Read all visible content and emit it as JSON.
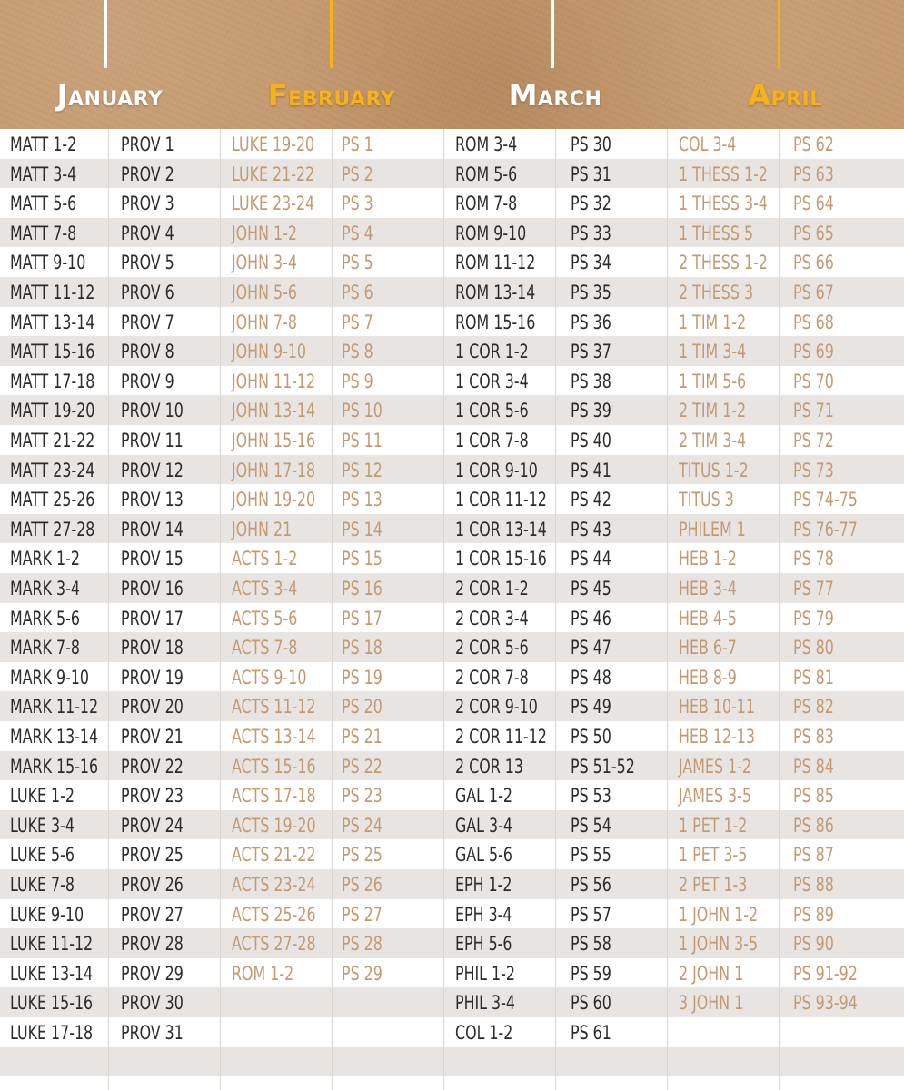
{
  "colors": {
    "jan_header": "#ffffff",
    "feb_header": "#f7b21b",
    "mar_header": "#ffffff",
    "apr_header": "#f7b21b",
    "dark_text": "#2b2b2b",
    "tan_text": "#c29a72",
    "row_shade": "#e8e4e1"
  },
  "months": [
    {
      "name": "January",
      "color": "#ffffff",
      "text_color": "#2b2b2b"
    },
    {
      "name": "February",
      "color": "#f7b21b",
      "text_color": "#c29a72"
    },
    {
      "name": "March",
      "color": "#ffffff",
      "text_color": "#2b2b2b"
    },
    {
      "name": "April",
      "color": "#f7b21b",
      "text_color": "#c29a72"
    }
  ],
  "readings": [
    [
      [
        "MATT 1-2",
        "PROV 1"
      ],
      [
        "MATT 3-4",
        "PROV 2"
      ],
      [
        "MATT 5-6",
        "PROV 3"
      ],
      [
        "MATT 7-8",
        "PROV 4"
      ],
      [
        "MATT 9-10",
        "PROV 5"
      ],
      [
        "MATT 11-12",
        "PROV 6"
      ],
      [
        "MATT 13-14",
        "PROV 7"
      ],
      [
        "MATT 15-16",
        "PROV 8"
      ],
      [
        "MATT 17-18",
        "PROV 9"
      ],
      [
        "MATT 19-20",
        "PROV 10"
      ],
      [
        "MATT 21-22",
        "PROV 11"
      ],
      [
        "MATT 23-24",
        "PROV 12"
      ],
      [
        "MATT 25-26",
        "PROV 13"
      ],
      [
        "MATT 27-28",
        "PROV 14"
      ],
      [
        "MARK 1-2",
        "PROV 15"
      ],
      [
        "MARK 3-4",
        "PROV 16"
      ],
      [
        "MARK 5-6",
        "PROV 17"
      ],
      [
        "MARK 7-8",
        "PROV 18"
      ],
      [
        "MARK 9-10",
        "PROV 19"
      ],
      [
        "MARK 11-12",
        "PROV 20"
      ],
      [
        "MARK 13-14",
        "PROV 21"
      ],
      [
        "MARK 15-16",
        "PROV 22"
      ],
      [
        "LUKE 1-2",
        "PROV 23"
      ],
      [
        "LUKE 3-4",
        "PROV 24"
      ],
      [
        "LUKE 5-6",
        "PROV 25"
      ],
      [
        "LUKE 7-8",
        "PROV 26"
      ],
      [
        "LUKE 9-10",
        "PROV 27"
      ],
      [
        "LUKE 11-12",
        "PROV 28"
      ],
      [
        "LUKE 13-14",
        "PROV 29"
      ],
      [
        "LUKE 15-16",
        "PROV 30"
      ],
      [
        "LUKE 17-18",
        "PROV 31"
      ]
    ],
    [
      [
        "LUKE 19-20",
        "PS 1"
      ],
      [
        "LUKE 21-22",
        "PS 2"
      ],
      [
        "LUKE 23-24",
        "PS 3"
      ],
      [
        "JOHN 1-2",
        "PS 4"
      ],
      [
        "JOHN 3-4",
        "PS 5"
      ],
      [
        "JOHN 5-6",
        "PS 6"
      ],
      [
        "JOHN 7-8",
        "PS 7"
      ],
      [
        "JOHN 9-10",
        "PS 8"
      ],
      [
        "JOHN 11-12",
        "PS 9"
      ],
      [
        "JOHN 13-14",
        "PS 10"
      ],
      [
        "JOHN 15-16",
        "PS 11"
      ],
      [
        "JOHN 17-18",
        "PS 12"
      ],
      [
        "JOHN 19-20",
        "PS 13"
      ],
      [
        "JOHN 21",
        "PS 14"
      ],
      [
        "ACTS 1-2",
        "PS 15"
      ],
      [
        "ACTS 3-4",
        "PS 16"
      ],
      [
        "ACTS 5-6",
        "PS 17"
      ],
      [
        "ACTS 7-8",
        "PS 18"
      ],
      [
        "ACTS 9-10",
        "PS 19"
      ],
      [
        "ACTS 11-12",
        "PS 20"
      ],
      [
        "ACTS 13-14",
        "PS 21"
      ],
      [
        "ACTS 15-16",
        "PS 22"
      ],
      [
        "ACTS 17-18",
        "PS 23"
      ],
      [
        "ACTS 19-20",
        "PS 24"
      ],
      [
        "ACTS 21-22",
        "PS 25"
      ],
      [
        "ACTS 23-24",
        "PS 26"
      ],
      [
        "ACTS 25-26",
        "PS 27"
      ],
      [
        "ACTS 27-28",
        "PS 28"
      ],
      [
        "ROM 1-2",
        "PS 29"
      ]
    ],
    [
      [
        "ROM 3-4",
        "PS 30"
      ],
      [
        "ROM 5-6",
        "PS 31"
      ],
      [
        "ROM 7-8",
        "PS 32"
      ],
      [
        "ROM 9-10",
        "PS 33"
      ],
      [
        "ROM 11-12",
        "PS 34"
      ],
      [
        "ROM 13-14",
        "PS 35"
      ],
      [
        "ROM 15-16",
        "PS 36"
      ],
      [
        "1 COR 1-2",
        "PS 37"
      ],
      [
        "1 COR 3-4",
        "PS 38"
      ],
      [
        "1 COR 5-6",
        "PS 39"
      ],
      [
        "1 COR 7-8",
        "PS 40"
      ],
      [
        "1 COR 9-10",
        "PS 41"
      ],
      [
        "1 COR 11-12",
        "PS 42"
      ],
      [
        "1 COR 13-14",
        "PS 43"
      ],
      [
        "1 COR 15-16",
        "PS 44"
      ],
      [
        "2 COR 1-2",
        "PS 45"
      ],
      [
        "2 COR 3-4",
        "PS 46"
      ],
      [
        "2 COR 5-6",
        "PS 47"
      ],
      [
        "2 COR 7-8",
        "PS 48"
      ],
      [
        "2 COR 9-10",
        "PS 49"
      ],
      [
        "2 COR 11-12",
        "PS 50"
      ],
      [
        "2 COR 13",
        "PS 51-52"
      ],
      [
        "GAL 1-2",
        "PS 53"
      ],
      [
        "GAL 3-4",
        "PS 54"
      ],
      [
        "GAL 5-6",
        "PS 55"
      ],
      [
        "EPH 1-2",
        "PS 56"
      ],
      [
        "EPH 3-4",
        "PS 57"
      ],
      [
        "EPH 5-6",
        "PS 58"
      ],
      [
        "PHIL 1-2",
        "PS 59"
      ],
      [
        "PHIL 3-4",
        "PS 60"
      ],
      [
        "COL 1-2",
        "PS 61"
      ]
    ],
    [
      [
        "COL 3-4",
        "PS 62"
      ],
      [
        "1 THESS 1-2",
        "PS 63"
      ],
      [
        "1 THESS 3-4",
        "PS 64"
      ],
      [
        "1 THESS 5",
        "PS 65"
      ],
      [
        "2 THESS 1-2",
        "PS 66"
      ],
      [
        "2 THESS 3",
        "PS 67"
      ],
      [
        "1 TIM 1-2",
        "PS 68"
      ],
      [
        "1 TIM 3-4",
        "PS 69"
      ],
      [
        "1 TIM 5-6",
        "PS 70"
      ],
      [
        "2 TIM 1-2",
        "PS 71"
      ],
      [
        "2 TIM 3-4",
        "PS 72"
      ],
      [
        "TITUS 1-2",
        "PS 73"
      ],
      [
        "TITUS 3",
        "PS 74-75"
      ],
      [
        "PHILEM 1",
        "PS 76-77"
      ],
      [
        "HEB 1-2",
        "PS 78"
      ],
      [
        "HEB 3-4",
        "PS 77"
      ],
      [
        "HEB 4-5",
        "PS 79"
      ],
      [
        "HEB 6-7",
        "PS 80"
      ],
      [
        "HEB 8-9",
        "PS 81"
      ],
      [
        "HEB 10-11",
        "PS 82"
      ],
      [
        "HEB 12-13",
        "PS 83"
      ],
      [
        "JAMES 1-2",
        "PS 84"
      ],
      [
        "JAMES 3-5",
        "PS 85"
      ],
      [
        "1 PET 1-2",
        "PS 86"
      ],
      [
        "1 PET 3-5",
        "PS 87"
      ],
      [
        "2 PET 1-3",
        "PS 88"
      ],
      [
        "1 JOHN 1-2",
        "PS 89"
      ],
      [
        "1 JOHN 3-5",
        "PS 90"
      ],
      [
        "2 JOHN 1",
        "PS 91-92"
      ],
      [
        "3 JOHN 1",
        "PS 93-94"
      ]
    ]
  ]
}
